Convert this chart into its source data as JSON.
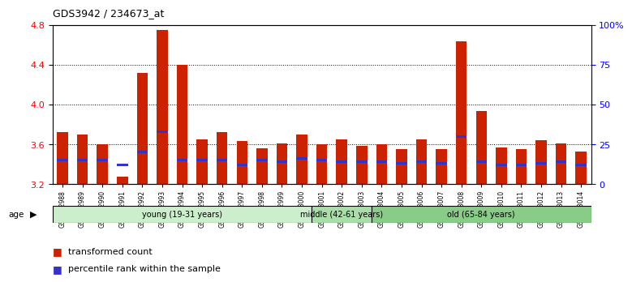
{
  "title": "GDS3942 / 234673_at",
  "samples": [
    "GSM812988",
    "GSM812989",
    "GSM812990",
    "GSM812991",
    "GSM812992",
    "GSM812993",
    "GSM812994",
    "GSM812995",
    "GSM812996",
    "GSM812997",
    "GSM812998",
    "GSM812999",
    "GSM813000",
    "GSM813001",
    "GSM813002",
    "GSM813003",
    "GSM813004",
    "GSM813005",
    "GSM813006",
    "GSM813007",
    "GSM813008",
    "GSM813009",
    "GSM813010",
    "GSM813011",
    "GSM813012",
    "GSM813013",
    "GSM813014"
  ],
  "transformed_count": [
    3.72,
    3.7,
    3.6,
    3.27,
    4.32,
    4.75,
    4.4,
    3.65,
    3.72,
    3.63,
    3.56,
    3.61,
    3.7,
    3.6,
    3.65,
    3.58,
    3.6,
    3.55,
    3.65,
    3.55,
    4.63,
    3.93,
    3.57,
    3.55,
    3.64,
    3.61,
    3.53
  ],
  "percentile_rank": [
    15,
    15,
    15,
    12,
    20,
    33,
    15,
    15,
    15,
    12,
    15,
    14,
    16,
    15,
    14,
    14,
    14,
    13,
    14,
    13,
    30,
    14,
    12,
    12,
    13,
    14,
    12
  ],
  "bar_color": "#CC2200",
  "blue_color": "#3333CC",
  "ylim_left": [
    3.2,
    4.8
  ],
  "ylim_right": [
    0,
    100
  ],
  "yticks_left": [
    3.2,
    3.6,
    4.0,
    4.4,
    4.8
  ],
  "yticks_right": [
    0,
    25,
    50,
    75,
    100
  ],
  "ytick_labels_right": [
    "0",
    "25",
    "50",
    "75",
    "100%"
  ],
  "groups": [
    {
      "label": "young (19-31 years)",
      "start": 0,
      "end": 13,
      "color": "#CCEECC"
    },
    {
      "label": "middle (42-61 years)",
      "start": 13,
      "end": 16,
      "color": "#AADDAA"
    },
    {
      "label": "old (65-84 years)",
      "start": 16,
      "end": 27,
      "color": "#88CC88"
    }
  ],
  "age_label": "age",
  "legend_items": [
    {
      "label": "transformed count",
      "color": "#CC2200"
    },
    {
      "label": "percentile rank within the sample",
      "color": "#3333CC"
    }
  ]
}
